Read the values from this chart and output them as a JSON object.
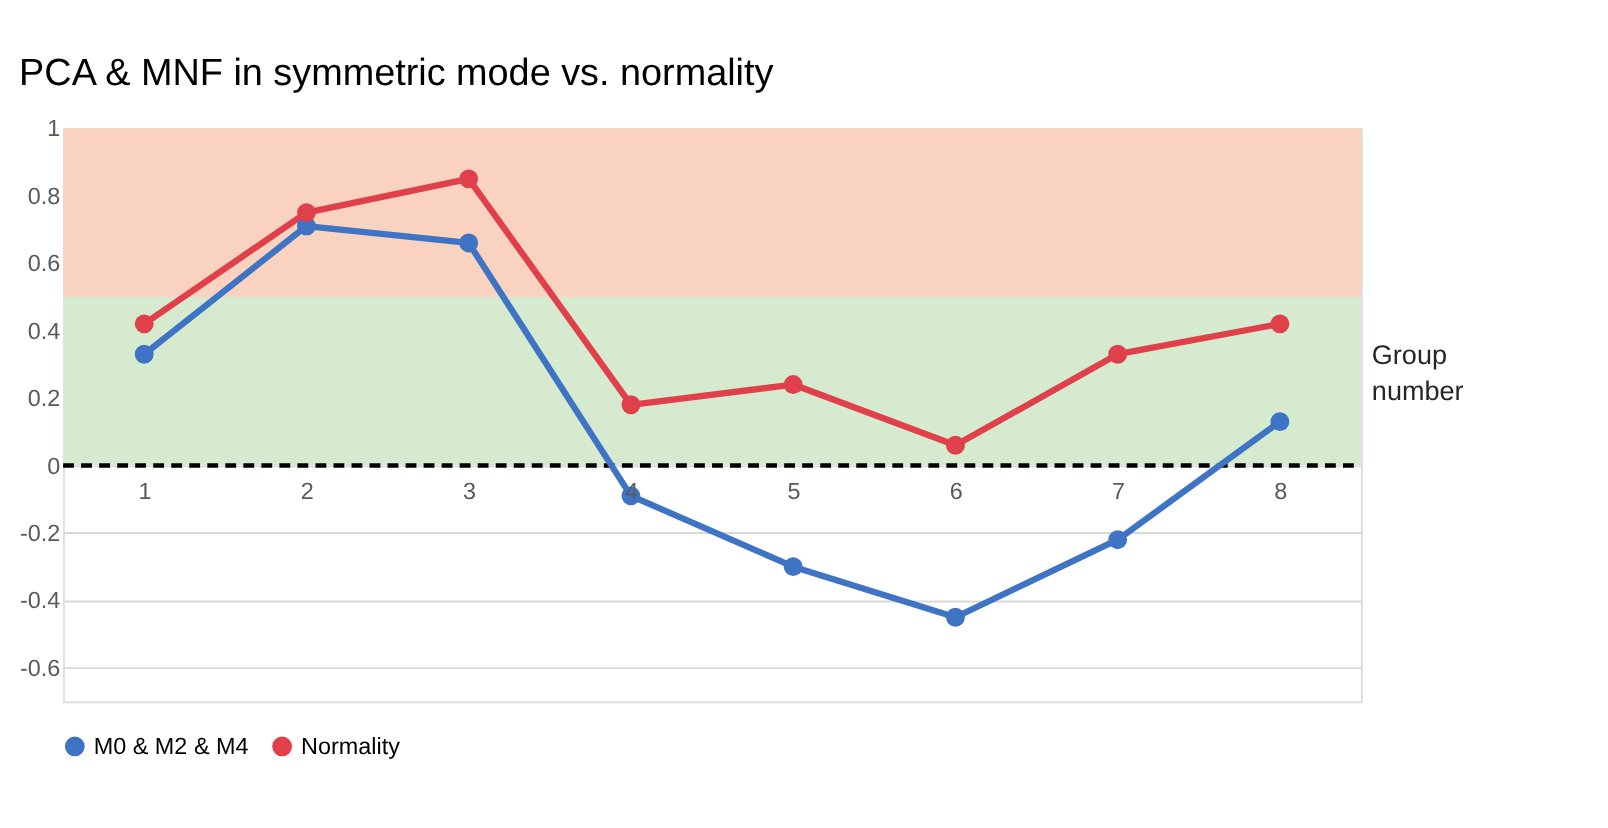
{
  "chart_data": {
    "type": "line",
    "title": "PCA & MNF in symmetric mode vs. normality",
    "xlabel": "Group number",
    "categories": [
      "1",
      "2",
      "3",
      "4",
      "5",
      "6",
      "7",
      "8"
    ],
    "series": [
      {
        "name": "M0 & M2 & M4",
        "color": "#3f73c4",
        "values": [
          0.33,
          0.71,
          0.66,
          -0.09,
          -0.3,
          -0.45,
          -0.22,
          0.13
        ]
      },
      {
        "name": "Normality",
        "color": "#e0404a",
        "values": [
          0.42,
          0.75,
          0.85,
          0.18,
          0.24,
          0.06,
          0.33,
          0.42
        ]
      }
    ],
    "ylim": [
      -0.7,
      1
    ],
    "yticks": [
      -0.6,
      -0.4,
      -0.2,
      0,
      0.2,
      0.4,
      0.6,
      0.8,
      1
    ],
    "grid": "y",
    "legend": "bottom",
    "marker": "circle",
    "line_style": "solid",
    "ref_lines": [
      {
        "axis": "y",
        "value": 0,
        "color": "#000000",
        "line_style": "dashed"
      }
    ],
    "bands": [
      {
        "axis": "y",
        "from": 0.5,
        "to": 1,
        "color": "#f9d3bf"
      },
      {
        "axis": "y",
        "from": 0,
        "to": 0.5,
        "color": "#d6ead0"
      }
    ]
  }
}
